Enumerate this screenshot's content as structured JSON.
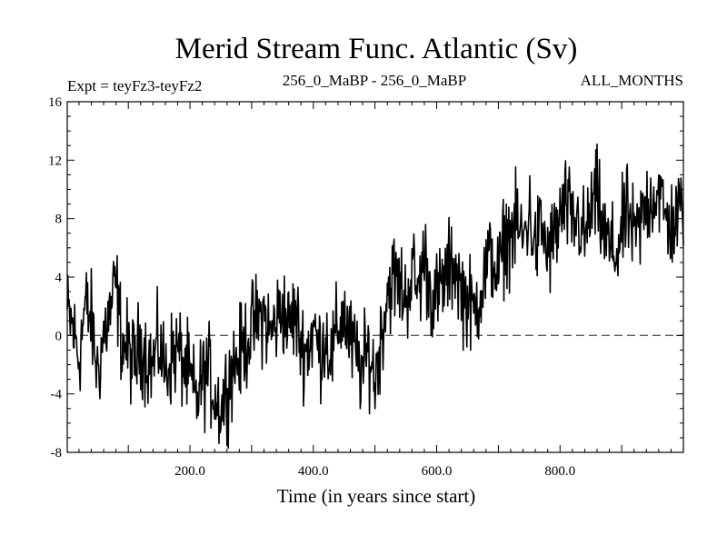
{
  "chart_data": {
    "type": "line",
    "title": "Merid Stream Func. Atlantic (Sv)",
    "subtitle_left": "Expt = teyFz3-teyFz2",
    "subtitle_center": "256_0_MaBP - 256_0_MaBP",
    "subtitle_right": "ALL_MONTHS",
    "xlabel": "Time (in years since start)",
    "ylabel": "",
    "xlim": [
      1,
      1000
    ],
    "ylim": [
      -8,
      16
    ],
    "x_ticks": [
      200,
      400,
      600,
      800
    ],
    "x_tick_labels": [
      "200.0",
      "400.0",
      "600.0",
      "800.0"
    ],
    "y_ticks": [
      -8,
      -4,
      0,
      4,
      8,
      12,
      16
    ],
    "y_tick_labels": [
      "-8",
      "-4",
      "0",
      "4",
      "8",
      "12",
      "16"
    ],
    "reference_line": 0,
    "series": [
      {
        "name": "Merid Stream Func. Atlantic",
        "sampling": "annual, one value per year (sketch of envelope, approx)",
        "x": [
          1,
          10,
          20,
          30,
          40,
          50,
          60,
          70,
          80,
          90,
          100,
          110,
          120,
          130,
          140,
          150,
          160,
          170,
          180,
          190,
          200,
          210,
          220,
          230,
          240,
          250,
          260,
          270,
          280,
          290,
          300,
          310,
          320,
          330,
          340,
          350,
          360,
          370,
          380,
          390,
          400,
          410,
          420,
          430,
          440,
          450,
          460,
          470,
          480,
          490,
          500,
          510,
          520,
          530,
          540,
          550,
          560,
          570,
          580,
          590,
          600,
          610,
          620,
          630,
          640,
          650,
          660,
          670,
          680,
          690,
          700,
          710,
          720,
          730,
          740,
          750,
          760,
          770,
          780,
          790,
          800,
          810,
          820,
          830,
          840,
          850,
          860,
          870,
          880,
          890,
          900,
          910,
          920,
          930,
          940,
          950,
          960,
          970,
          980,
          990,
          1000
        ],
        "values": [
          1.5,
          0.5,
          -1.5,
          2.0,
          1.0,
          -2.5,
          0.0,
          1.5,
          3.5,
          -0.5,
          -1.0,
          -2.0,
          -0.5,
          -1.5,
          -2.0,
          -0.5,
          -2.5,
          -1.5,
          -1.0,
          -2.0,
          -3.0,
          -4.5,
          -3.0,
          -2.5,
          -4.0,
          -5.0,
          -3.5,
          -2.0,
          -1.5,
          -0.5,
          0.5,
          1.0,
          1.5,
          0.0,
          1.0,
          2.0,
          0.5,
          1.5,
          -0.5,
          -1.0,
          0.5,
          -1.0,
          0.0,
          -1.5,
          0.5,
          1.5,
          -0.5,
          -1.5,
          -2.5,
          -1.0,
          -3.0,
          0.0,
          3.0,
          4.0,
          3.5,
          2.5,
          4.5,
          3.0,
          5.5,
          3.0,
          2.5,
          3.5,
          4.5,
          5.0,
          3.0,
          2.5,
          1.5,
          3.0,
          4.5,
          5.5,
          4.0,
          6.5,
          7.0,
          7.5,
          6.5,
          8.5,
          6.0,
          7.5,
          5.5,
          6.5,
          8.0,
          9.0,
          7.5,
          8.0,
          6.5,
          8.5,
          9.5,
          7.0,
          6.0,
          5.5,
          7.0,
          8.5,
          6.5,
          7.5,
          9.0,
          9.5,
          10.0,
          8.0,
          7.5,
          8.0,
          9.0
        ]
      }
    ]
  }
}
